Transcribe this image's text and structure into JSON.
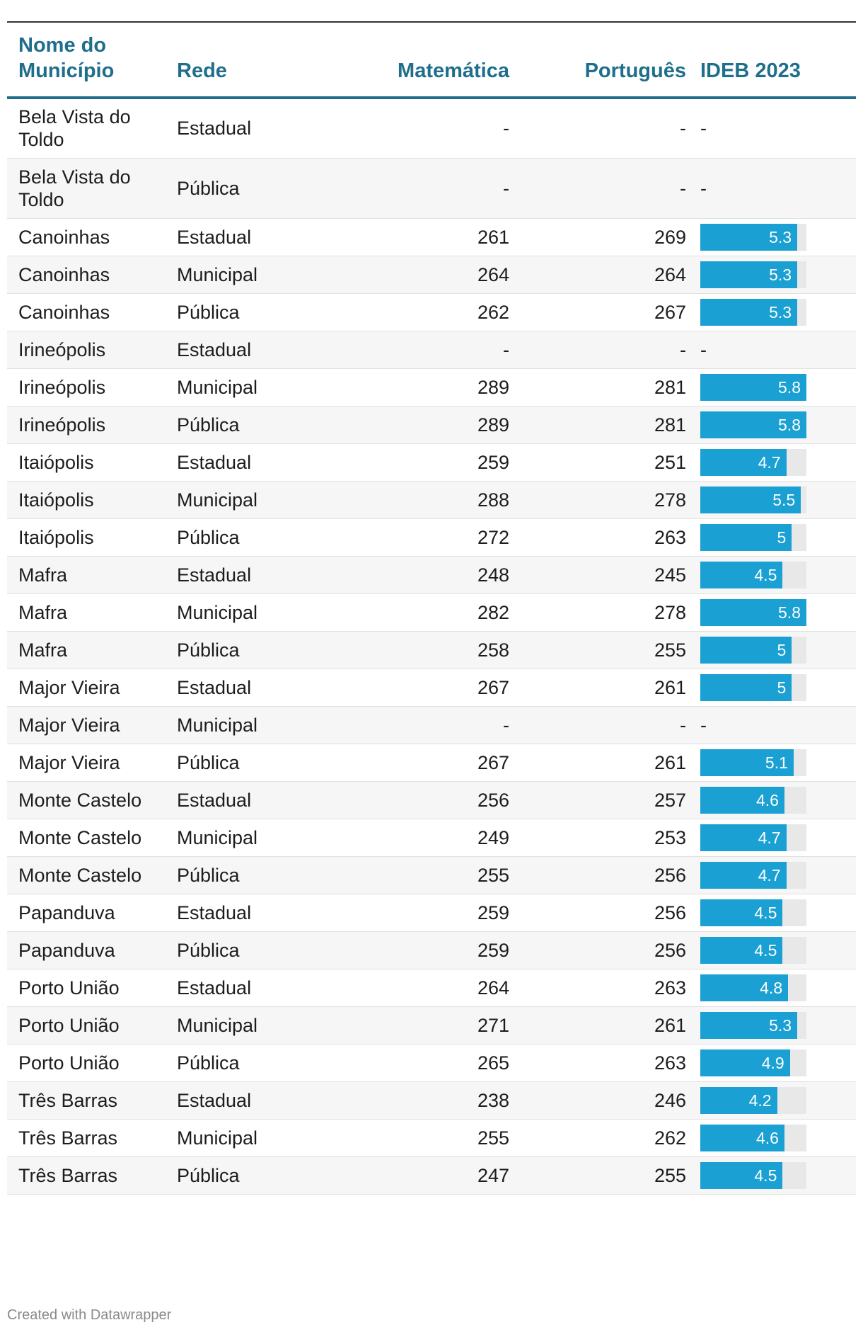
{
  "header": {
    "municipio": "Nome do Município",
    "rede": "Rede",
    "matematica": "Matemática",
    "portugues": "Português",
    "ideb": "IDEB 2023"
  },
  "bar_color": "#1aa0d3",
  "bar_track_color": "#e8e8e8",
  "header_color": "#1f6e8c",
  "ideb_max": 5.8,
  "rows": [
    {
      "municipio": "Bela Vista do Toldo",
      "rede": "Estadual",
      "matematica": "-",
      "portugues": "-",
      "ideb": "-"
    },
    {
      "municipio": "Bela Vista do Toldo",
      "rede": "Pública",
      "matematica": "-",
      "portugues": "-",
      "ideb": "-"
    },
    {
      "municipio": "Canoinhas",
      "rede": "Estadual",
      "matematica": "261",
      "portugues": "269",
      "ideb": 5.3
    },
    {
      "municipio": "Canoinhas",
      "rede": "Municipal",
      "matematica": "264",
      "portugues": "264",
      "ideb": 5.3
    },
    {
      "municipio": "Canoinhas",
      "rede": "Pública",
      "matematica": "262",
      "portugues": "267",
      "ideb": 5.3
    },
    {
      "municipio": "Irineópolis",
      "rede": "Estadual",
      "matematica": "-",
      "portugues": "-",
      "ideb": "-"
    },
    {
      "municipio": "Irineópolis",
      "rede": "Municipal",
      "matematica": "289",
      "portugues": "281",
      "ideb": 5.8
    },
    {
      "municipio": "Irineópolis",
      "rede": "Pública",
      "matematica": "289",
      "portugues": "281",
      "ideb": 5.8
    },
    {
      "municipio": "Itaiópolis",
      "rede": "Estadual",
      "matematica": "259",
      "portugues": "251",
      "ideb": 4.7
    },
    {
      "municipio": "Itaiópolis",
      "rede": "Municipal",
      "matematica": "288",
      "portugues": "278",
      "ideb": 5.5
    },
    {
      "municipio": "Itaiópolis",
      "rede": "Pública",
      "matematica": "272",
      "portugues": "263",
      "ideb": 5
    },
    {
      "municipio": "Mafra",
      "rede": "Estadual",
      "matematica": "248",
      "portugues": "245",
      "ideb": 4.5
    },
    {
      "municipio": "Mafra",
      "rede": "Municipal",
      "matematica": "282",
      "portugues": "278",
      "ideb": 5.8
    },
    {
      "municipio": "Mafra",
      "rede": "Pública",
      "matematica": "258",
      "portugues": "255",
      "ideb": 5
    },
    {
      "municipio": "Major Vieira",
      "rede": "Estadual",
      "matematica": "267",
      "portugues": "261",
      "ideb": 5
    },
    {
      "municipio": "Major Vieira",
      "rede": "Municipal",
      "matematica": "-",
      "portugues": "-",
      "ideb": "-"
    },
    {
      "municipio": "Major Vieira",
      "rede": "Pública",
      "matematica": "267",
      "portugues": "261",
      "ideb": 5.1
    },
    {
      "municipio": "Monte Castelo",
      "rede": "Estadual",
      "matematica": "256",
      "portugues": "257",
      "ideb": 4.6
    },
    {
      "municipio": "Monte Castelo",
      "rede": "Municipal",
      "matematica": "249",
      "portugues": "253",
      "ideb": 4.7
    },
    {
      "municipio": "Monte Castelo",
      "rede": "Pública",
      "matematica": "255",
      "portugues": "256",
      "ideb": 4.7
    },
    {
      "municipio": "Papanduva",
      "rede": "Estadual",
      "matematica": "259",
      "portugues": "256",
      "ideb": 4.5
    },
    {
      "municipio": "Papanduva",
      "rede": "Pública",
      "matematica": "259",
      "portugues": "256",
      "ideb": 4.5
    },
    {
      "municipio": "Porto União",
      "rede": "Estadual",
      "matematica": "264",
      "portugues": "263",
      "ideb": 4.8
    },
    {
      "municipio": "Porto União",
      "rede": "Municipal",
      "matematica": "271",
      "portugues": "261",
      "ideb": 5.3
    },
    {
      "municipio": "Porto União",
      "rede": "Pública",
      "matematica": "265",
      "portugues": "263",
      "ideb": 4.9
    },
    {
      "municipio": "Três Barras",
      "rede": "Estadual",
      "matematica": "238",
      "portugues": "246",
      "ideb": 4.2
    },
    {
      "municipio": "Três Barras",
      "rede": "Municipal",
      "matematica": "255",
      "portugues": "262",
      "ideb": 4.6
    },
    {
      "municipio": "Três Barras",
      "rede": "Pública",
      "matematica": "247",
      "portugues": "255",
      "ideb": 4.5
    }
  ],
  "footer": "Created with Datawrapper"
}
